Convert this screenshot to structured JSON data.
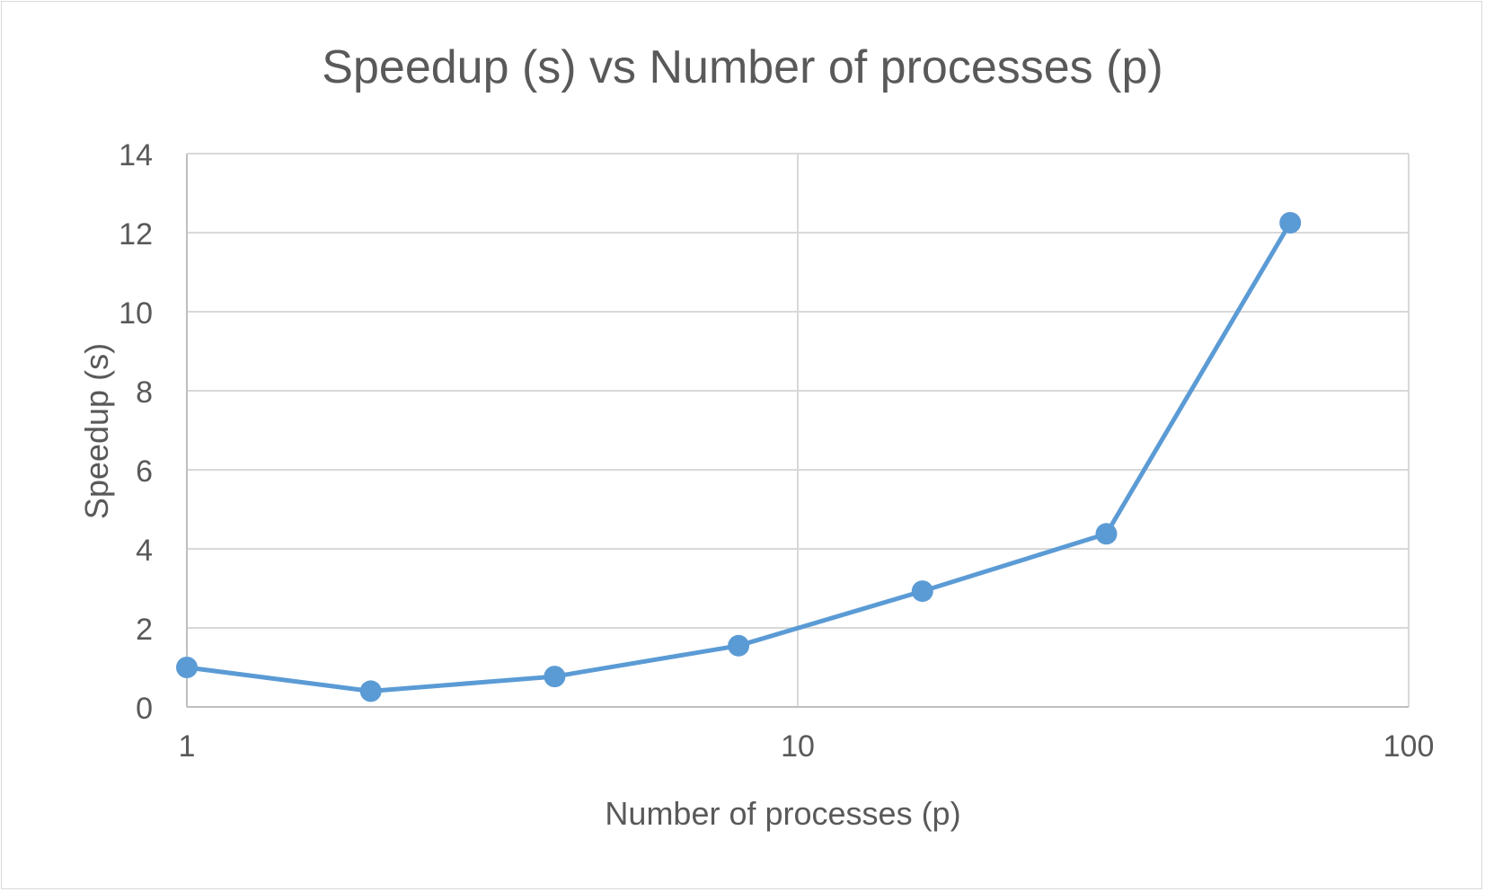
{
  "chart_data": {
    "type": "line",
    "title": "Speedup (s) vs Number of processes (p)",
    "xlabel": "Number of processes (p)",
    "ylabel": "Speedup (s)",
    "x_scale": "log10",
    "xlim": [
      1,
      100
    ],
    "ylim": [
      0,
      14
    ],
    "x_ticks": [
      1,
      10,
      100
    ],
    "y_ticks": [
      0,
      2,
      4,
      6,
      8,
      10,
      12,
      14
    ],
    "grid": true,
    "legend": "none",
    "series": [
      {
        "x": [
          1,
          2,
          4,
          8,
          16,
          32,
          64
        ],
        "y": [
          1.0,
          0.4,
          0.77,
          1.55,
          2.93,
          4.38,
          12.25
        ],
        "color": "#5b9bd5"
      }
    ]
  }
}
